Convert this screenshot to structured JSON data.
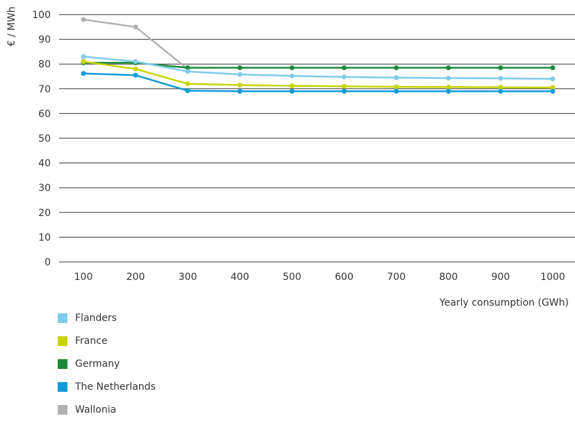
{
  "chart_data": {
    "type": "line",
    "ylabel": "€ / MWh",
    "xlabel": "Yearly consumption (GWh)",
    "x": [
      100,
      200,
      300,
      400,
      500,
      600,
      700,
      800,
      900,
      1000
    ],
    "x_tick_labels": [
      "100",
      "200",
      "300",
      "400",
      "500",
      "600",
      "700",
      "800",
      "900",
      "1000"
    ],
    "y_tick_labels": [
      "0",
      "10",
      "20",
      "30",
      "40",
      "50",
      "60",
      "70",
      "80",
      "90",
      "100"
    ],
    "ylim": [
      0,
      100
    ],
    "grid": "horizontal",
    "legend_position": "bottom-left",
    "series": [
      {
        "name": "Wallonia",
        "color": "#b2b2b2",
        "values": [
          98,
          95,
          78,
          null,
          null,
          null,
          null,
          null,
          null,
          null
        ]
      },
      {
        "name": "Germany",
        "color": "#1a8a3a",
        "values": [
          80.5,
          80.5,
          78.5,
          78.5,
          78.5,
          78.5,
          78.5,
          78.5,
          78.5,
          78.5
        ]
      },
      {
        "name": "France",
        "color": "#c8d400",
        "values": [
          81,
          78,
          72,
          71.5,
          71.2,
          71,
          70.8,
          70.7,
          70.6,
          70.5
        ]
      },
      {
        "name": "Flanders",
        "color": "#7ecbec",
        "values": [
          83,
          81,
          77,
          75.8,
          75.2,
          74.8,
          74.5,
          74.3,
          74.2,
          74
        ]
      },
      {
        "name": "The Netherlands",
        "color": "#0f9bd7",
        "values": [
          76.2,
          75.5,
          69.2,
          69,
          69,
          69,
          69,
          69,
          69,
          69
        ]
      }
    ],
    "legend_order": [
      "Flanders",
      "France",
      "Germany",
      "The Netherlands",
      "Wallonia"
    ]
  }
}
